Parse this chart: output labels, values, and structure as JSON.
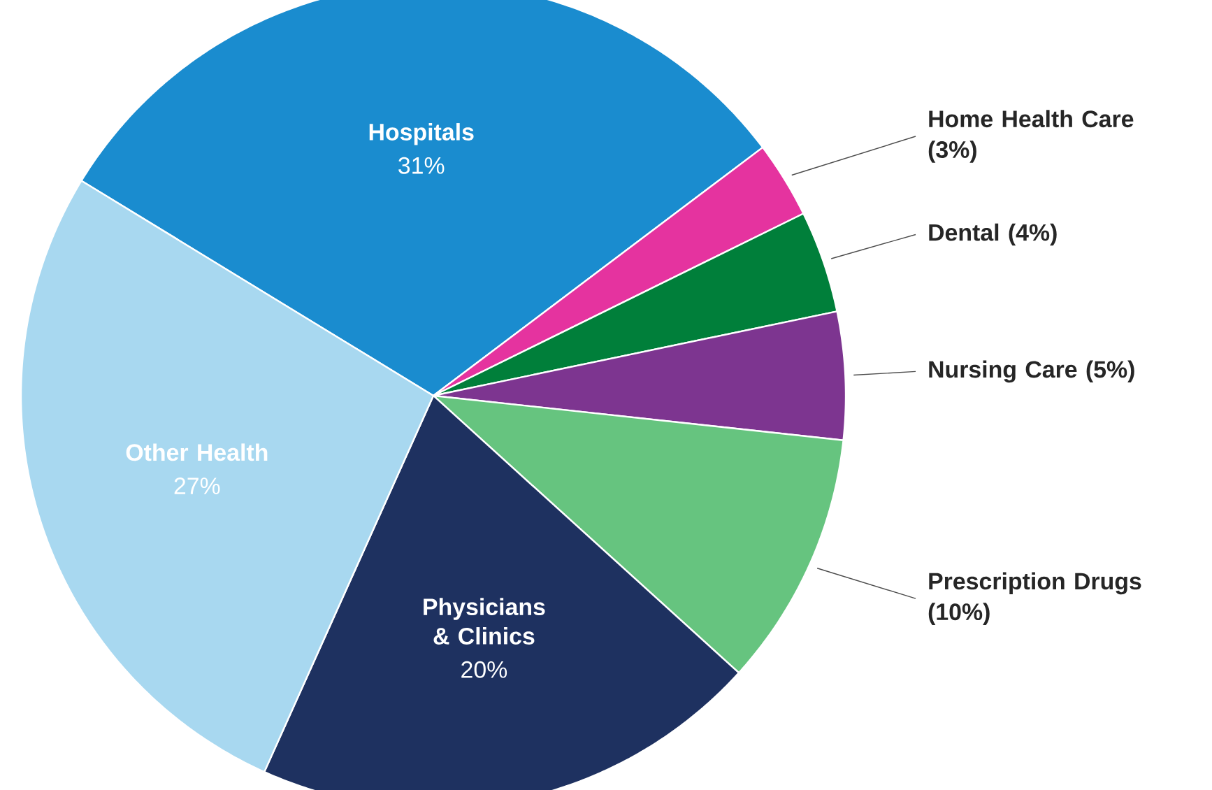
{
  "chart_data": {
    "type": "pie",
    "categories": [
      "Hospitals",
      "Home Health Care",
      "Dental",
      "Nursing Care",
      "Prescription Drugs",
      "Physicians & Clinics",
      "Other Health"
    ],
    "values": [
      31,
      3,
      4,
      5,
      10,
      20,
      27
    ],
    "value_labels": [
      "31%",
      "(3%)",
      "(4%)",
      "(5%)",
      "(10%)",
      "20%",
      "27%"
    ],
    "colors": [
      "#1a8ccf",
      "#e5339f",
      "#007f3a",
      "#7d3590",
      "#66c47f",
      "#1e3160",
      "#a8d8f0"
    ]
  }
}
